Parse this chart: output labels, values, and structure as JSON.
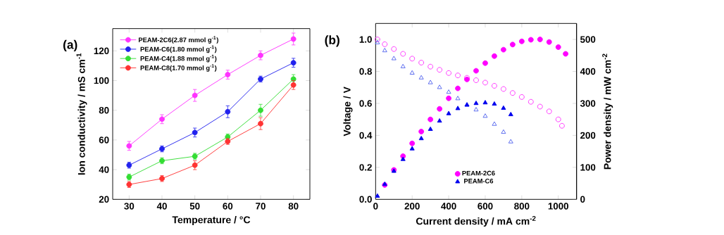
{
  "chart_data": [
    {
      "type": "line",
      "xlabel": "Temperature / °C",
      "ylabel": "Ion conductivity / mS cm$^{-1}$",
      "annotations": [
        "(a)"
      ],
      "x": [
        30,
        40,
        50,
        60,
        70,
        80
      ],
      "xlim": [
        25,
        85
      ],
      "xticks": [
        30,
        40,
        50,
        60,
        70,
        80
      ],
      "ylim": [
        20,
        135
      ],
      "yticks": [
        20,
        40,
        60,
        80,
        100,
        120
      ],
      "marker": "circle",
      "legend": "top left",
      "series": [
        {
          "name": "PEAM-2C6(2.87 mmol g$^{-1}$)",
          "color": "#ff33ff",
          "values": [
            56,
            74,
            90,
            104,
            117,
            128
          ],
          "errors": [
            3,
            3,
            4,
            3,
            3,
            4
          ]
        },
        {
          "name": "PEAM-C6(1.80 mmol g$^{-1}$)",
          "color": "#2222ee",
          "values": [
            43,
            54,
            65,
            79,
            101,
            112
          ],
          "errors": [
            2,
            2,
            3,
            4,
            2,
            3
          ]
        },
        {
          "name": "PEAM-C4(1.88 mmol g$^{-1}$)",
          "color": "#33dd33",
          "values": [
            35,
            46,
            49,
            62,
            80,
            101
          ],
          "errors": [
            2,
            2,
            2,
            2,
            4,
            3
          ]
        },
        {
          "name": "PEAM-C8(1.70 mmol g$^{-1}$)",
          "color": "#ff3333",
          "values": [
            30,
            34,
            43,
            59,
            71,
            97
          ],
          "errors": [
            2,
            2,
            3,
            2,
            4,
            3
          ]
        }
      ]
    },
    {
      "type": "scatter",
      "xlabel": "Current density / mA cm$^{-2}$",
      "ylabel": "Voltage / V",
      "y2label": "Power density / mW cm$^{-2}$",
      "annotations": [
        "(b)"
      ],
      "xlim": [
        0,
        1100
      ],
      "xticks": [
        0,
        200,
        400,
        600,
        800,
        1000
      ],
      "ylim": [
        0,
        1.1
      ],
      "yticks": [
        {
          "value": 0,
          "label": "0.0"
        },
        {
          "value": 0.2,
          "label": "0.2"
        },
        {
          "value": 0.4,
          "label": "0.4"
        },
        {
          "value": 0.6,
          "label": "0.6"
        },
        {
          "value": 0.8,
          "label": "0.8"
        },
        {
          "value": 1,
          "label": "1.0"
        }
      ],
      "y2lim": [
        0,
        550
      ],
      "y2ticks": [
        0,
        100,
        200,
        300,
        400,
        500
      ],
      "legend": "bottom",
      "series": [
        {
          "color": "#ff33ff",
          "marker": "circle",
          "x": [
            10,
            50,
            100,
            150,
            200,
            250,
            300,
            350,
            400,
            450,
            500,
            550,
            600,
            650,
            700,
            750,
            800,
            850,
            900,
            950,
            1000,
            1020
          ],
          "values": [
            1.0,
            0.97,
            0.94,
            0.91,
            0.88,
            0.855,
            0.83,
            0.81,
            0.79,
            0.775,
            0.76,
            0.745,
            0.73,
            0.71,
            0.69,
            0.665,
            0.64,
            0.61,
            0.58,
            0.55,
            0.5,
            0.46
          ]
        },
        {
          "color": "#5566ee",
          "marker": "triangle",
          "x": [
            10,
            50,
            100,
            150,
            200,
            250,
            300,
            350,
            400,
            450,
            500,
            550,
            600,
            650,
            700,
            740
          ],
          "values": [
            0.98,
            0.93,
            0.88,
            0.83,
            0.79,
            0.76,
            0.73,
            0.7,
            0.67,
            0.63,
            0.59,
            0.56,
            0.52,
            0.47,
            0.42,
            0.36
          ]
        },
        {
          "name": "PEAM-2C6",
          "color": "#ff00ff",
          "marker": "circle",
          "axis": "y2",
          "x": [
            50,
            100,
            150,
            200,
            250,
            300,
            350,
            400,
            450,
            500,
            550,
            600,
            650,
            700,
            750,
            800,
            850,
            900,
            950,
            1000,
            1040
          ],
          "values": [
            45,
            92,
            135,
            175,
            212,
            250,
            283,
            316,
            347,
            375,
            402,
            426,
            448,
            468,
            484,
            494,
            499,
            500,
            492,
            476,
            455
          ]
        },
        {
          "name": "PEAM-C6",
          "color": "#0000ee",
          "marker": "triangle",
          "axis": "y2",
          "x": [
            10,
            50,
            100,
            150,
            200,
            250,
            300,
            350,
            400,
            450,
            500,
            550,
            600,
            650,
            700,
            740
          ],
          "values": [
            10,
            47,
            88,
            125,
            158,
            190,
            219,
            245,
            268,
            284,
            295,
            300,
            302,
            298,
            285,
            265
          ]
        }
      ]
    }
  ]
}
